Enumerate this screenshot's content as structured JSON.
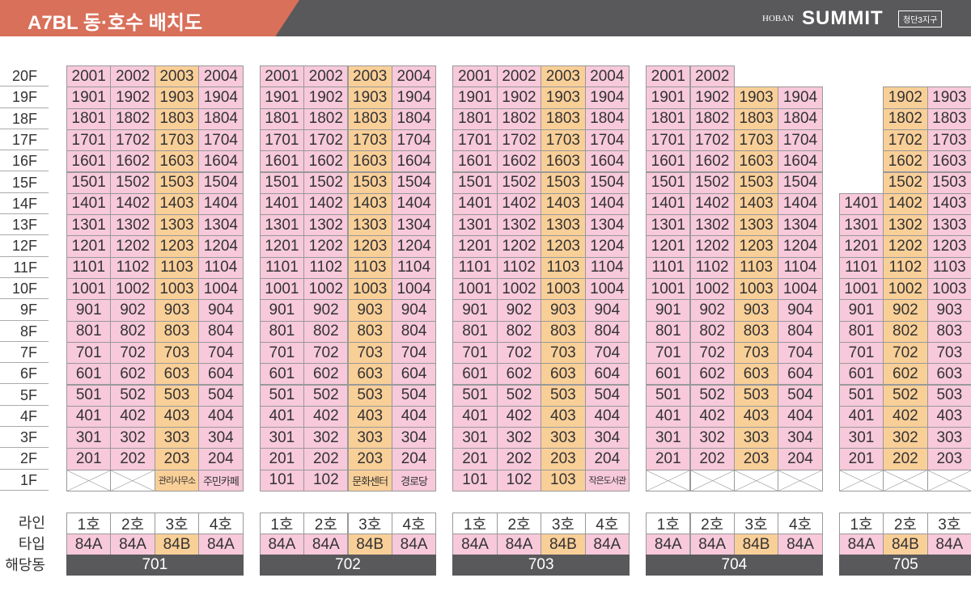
{
  "header": {
    "title": "A7BL 동·호수 배치도",
    "brand_small": "HOBAN",
    "brand": "SUMMIT",
    "district": "청단3지구"
  },
  "floors": [
    "20F",
    "19F",
    "18F",
    "17F",
    "16F",
    "15F",
    "14F",
    "13F",
    "12F",
    "11F",
    "10F",
    "9F",
    "8F",
    "7F",
    "6F",
    "5F",
    "4F",
    "3F",
    "2F",
    "1F"
  ],
  "footer_labels": [
    "라인",
    "타입",
    "해당동"
  ],
  "buildings": [
    {
      "name": "701",
      "column_colors": [
        "#f7c9da",
        "#f7c9da",
        "#f9cf98",
        "#f7c9da"
      ],
      "lines": [
        "1호",
        "2호",
        "3호",
        "4호"
      ],
      "types": [
        "84A",
        "84A",
        "84B",
        "84A"
      ],
      "rows": [
        [
          "2001",
          "2002",
          "2003",
          "2004"
        ],
        [
          "1901",
          "1902",
          "1903",
          "1904"
        ],
        [
          "1801",
          "1802",
          "1803",
          "1804"
        ],
        [
          "1701",
          "1702",
          "1703",
          "1704"
        ],
        [
          "1601",
          "1602",
          "1603",
          "1604"
        ],
        [
          "1501",
          "1502",
          "1503",
          "1504"
        ],
        [
          "1401",
          "1402",
          "1403",
          "1404"
        ],
        [
          "1301",
          "1302",
          "1303",
          "1304"
        ],
        [
          "1201",
          "1202",
          "1203",
          "1204"
        ],
        [
          "1101",
          "1102",
          "1103",
          "1104"
        ],
        [
          "1001",
          "1002",
          "1003",
          "1004"
        ],
        [
          "901",
          "902",
          "903",
          "904"
        ],
        [
          "801",
          "802",
          "803",
          "804"
        ],
        [
          "701",
          "702",
          "703",
          "704"
        ],
        [
          "601",
          "602",
          "603",
          "604"
        ],
        [
          "501",
          "502",
          "503",
          "504"
        ],
        [
          "401",
          "402",
          "403",
          "404"
        ],
        [
          "301",
          "302",
          "303",
          "304"
        ],
        [
          "201",
          "202",
          "203",
          "204"
        ],
        [
          null,
          null,
          "관리사무소",
          "주민카페"
        ]
      ]
    },
    {
      "name": "702",
      "column_colors": [
        "#f7c9da",
        "#f7c9da",
        "#f9cf98",
        "#f7c9da"
      ],
      "lines": [
        "1호",
        "2호",
        "3호",
        "4호"
      ],
      "types": [
        "84A",
        "84A",
        "84B",
        "84A"
      ],
      "rows": [
        [
          "2001",
          "2002",
          "2003",
          "2004"
        ],
        [
          "1901",
          "1902",
          "1903",
          "1904"
        ],
        [
          "1801",
          "1802",
          "1803",
          "1804"
        ],
        [
          "1701",
          "1702",
          "1703",
          "1704"
        ],
        [
          "1601",
          "1602",
          "1603",
          "1604"
        ],
        [
          "1501",
          "1502",
          "1503",
          "1504"
        ],
        [
          "1401",
          "1402",
          "1403",
          "1404"
        ],
        [
          "1301",
          "1302",
          "1303",
          "1304"
        ],
        [
          "1201",
          "1202",
          "1203",
          "1204"
        ],
        [
          "1101",
          "1102",
          "1103",
          "1104"
        ],
        [
          "1001",
          "1002",
          "1003",
          "1004"
        ],
        [
          "901",
          "902",
          "903",
          "904"
        ],
        [
          "801",
          "802",
          "803",
          "804"
        ],
        [
          "701",
          "702",
          "703",
          "704"
        ],
        [
          "601",
          "602",
          "603",
          "604"
        ],
        [
          "501",
          "502",
          "503",
          "504"
        ],
        [
          "401",
          "402",
          "403",
          "404"
        ],
        [
          "301",
          "302",
          "303",
          "304"
        ],
        [
          "201",
          "202",
          "203",
          "204"
        ],
        [
          "101",
          "102",
          "문화센터",
          "경로당"
        ]
      ]
    },
    {
      "name": "703",
      "column_colors": [
        "#f7c9da",
        "#f7c9da",
        "#f9cf98",
        "#f7c9da"
      ],
      "lines": [
        "1호",
        "2호",
        "3호",
        "4호"
      ],
      "types": [
        "84A",
        "84A",
        "84B",
        "84A"
      ],
      "rows": [
        [
          "2001",
          "2002",
          "2003",
          "2004"
        ],
        [
          "1901",
          "1902",
          "1903",
          "1904"
        ],
        [
          "1801",
          "1802",
          "1803",
          "1804"
        ],
        [
          "1701",
          "1702",
          "1703",
          "1704"
        ],
        [
          "1601",
          "1602",
          "1603",
          "1604"
        ],
        [
          "1501",
          "1502",
          "1503",
          "1504"
        ],
        [
          "1401",
          "1402",
          "1403",
          "1404"
        ],
        [
          "1301",
          "1302",
          "1303",
          "1304"
        ],
        [
          "1201",
          "1202",
          "1203",
          "1204"
        ],
        [
          "1101",
          "1102",
          "1103",
          "1104"
        ],
        [
          "1001",
          "1002",
          "1003",
          "1004"
        ],
        [
          "901",
          "902",
          "903",
          "904"
        ],
        [
          "801",
          "802",
          "803",
          "804"
        ],
        [
          "701",
          "702",
          "703",
          "704"
        ],
        [
          "601",
          "602",
          "603",
          "604"
        ],
        [
          "501",
          "502",
          "503",
          "504"
        ],
        [
          "401",
          "402",
          "403",
          "404"
        ],
        [
          "301",
          "302",
          "303",
          "304"
        ],
        [
          "201",
          "202",
          "203",
          "204"
        ],
        [
          "101",
          "102",
          "103",
          "작은도서관"
        ]
      ]
    },
    {
      "name": "704",
      "column_colors": [
        "#f7c9da",
        "#f7c9da",
        "#f9cf98",
        "#f7c9da"
      ],
      "lines": [
        "1호",
        "2호",
        "3호",
        "4호"
      ],
      "types": [
        "84A",
        "84A",
        "84B",
        "84A"
      ],
      "rows": [
        [
          "2001",
          "2002",
          null,
          null
        ],
        [
          "1901",
          "1902",
          "1903",
          "1904"
        ],
        [
          "1801",
          "1802",
          "1803",
          "1804"
        ],
        [
          "1701",
          "1702",
          "1703",
          "1704"
        ],
        [
          "1601",
          "1602",
          "1603",
          "1604"
        ],
        [
          "1501",
          "1502",
          "1503",
          "1504"
        ],
        [
          "1401",
          "1402",
          "1403",
          "1404"
        ],
        [
          "1301",
          "1302",
          "1303",
          "1304"
        ],
        [
          "1201",
          "1202",
          "1203",
          "1204"
        ],
        [
          "1101",
          "1102",
          "1103",
          "1104"
        ],
        [
          "1001",
          "1002",
          "1003",
          "1004"
        ],
        [
          "901",
          "902",
          "903",
          "904"
        ],
        [
          "801",
          "802",
          "803",
          "804"
        ],
        [
          "701",
          "702",
          "703",
          "704"
        ],
        [
          "601",
          "602",
          "603",
          "604"
        ],
        [
          "501",
          "502",
          "503",
          "504"
        ],
        [
          "401",
          "402",
          "403",
          "404"
        ],
        [
          "301",
          "302",
          "303",
          "304"
        ],
        [
          "201",
          "202",
          "203",
          "204"
        ],
        [
          null,
          null,
          null,
          null
        ]
      ]
    },
    {
      "name": "705",
      "column_colors": [
        "#f7c9da",
        "#f9cf98",
        "#f7c9da"
      ],
      "lines": [
        "1호",
        "2호",
        "3호"
      ],
      "types": [
        "84A",
        "84B",
        "84A"
      ],
      "rows": [
        [
          null,
          null,
          null
        ],
        [
          null,
          "1902",
          "1903"
        ],
        [
          null,
          "1802",
          "1803"
        ],
        [
          null,
          "1702",
          "1703"
        ],
        [
          null,
          "1602",
          "1603"
        ],
        [
          null,
          "1502",
          "1503"
        ],
        [
          "1401",
          "1402",
          "1403"
        ],
        [
          "1301",
          "1302",
          "1303"
        ],
        [
          "1201",
          "1202",
          "1203"
        ],
        [
          "1101",
          "1102",
          "1103"
        ],
        [
          "1001",
          "1002",
          "1003"
        ],
        [
          "901",
          "902",
          "903"
        ],
        [
          "801",
          "802",
          "803"
        ],
        [
          "701",
          "702",
          "703"
        ],
        [
          "601",
          "602",
          "603"
        ],
        [
          "501",
          "502",
          "503"
        ],
        [
          "401",
          "402",
          "403"
        ],
        [
          "301",
          "302",
          "303"
        ],
        [
          "201",
          "202",
          "203"
        ],
        [
          null,
          null,
          null
        ]
      ]
    }
  ]
}
